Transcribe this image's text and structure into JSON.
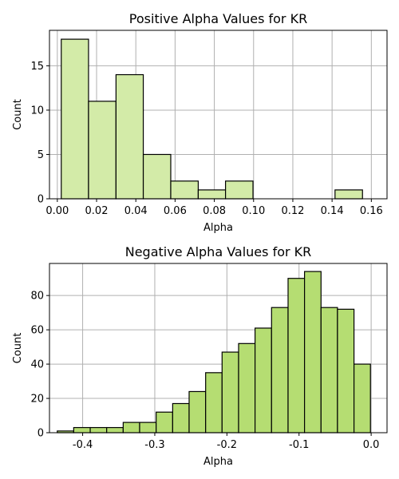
{
  "chart_data": [
    {
      "type": "bar",
      "title": "Positive Alpha Values for KR",
      "xlabel": "Alpha",
      "ylabel": "Count",
      "xlim": [
        -0.004,
        0.168
      ],
      "ylim": [
        0,
        19
      ],
      "xticks": [
        0.0,
        0.02,
        0.04,
        0.06,
        0.08,
        0.1,
        0.12,
        0.14,
        0.16
      ],
      "xtick_labels": [
        "0.00",
        "0.02",
        "0.04",
        "0.06",
        "0.08",
        "0.10",
        "0.12",
        "0.14",
        "0.16"
      ],
      "yticks": [
        0,
        5,
        10,
        15
      ],
      "ytick_labels": [
        "0",
        "5",
        "10",
        "15"
      ],
      "grid": true,
      "bar_color": "#d3eba8",
      "bins": [
        {
          "x0": 0.002,
          "x1": 0.0159,
          "value": 18
        },
        {
          "x0": 0.0159,
          "x1": 0.0299,
          "value": 11
        },
        {
          "x0": 0.0299,
          "x1": 0.0438,
          "value": 14
        },
        {
          "x0": 0.0438,
          "x1": 0.0578,
          "value": 5
        },
        {
          "x0": 0.0578,
          "x1": 0.0718,
          "value": 2
        },
        {
          "x0": 0.0718,
          "x1": 0.0857,
          "value": 1
        },
        {
          "x0": 0.0857,
          "x1": 0.0997,
          "value": 2
        },
        {
          "x0": 0.0997,
          "x1": 0.1136,
          "value": 0
        },
        {
          "x0": 0.1136,
          "x1": 0.1276,
          "value": 0
        },
        {
          "x0": 0.1276,
          "x1": 0.1415,
          "value": 0
        },
        {
          "x0": 0.1415,
          "x1": 0.1555,
          "value": 1
        }
      ]
    },
    {
      "type": "bar",
      "title": "Negative Alpha Values for KR",
      "xlabel": "Alpha",
      "ylabel": "Count",
      "xlim": [
        -0.446,
        0.022
      ],
      "ylim": [
        0,
        98.7
      ],
      "xticks": [
        -0.4,
        -0.3,
        -0.2,
        -0.1,
        0.0
      ],
      "xtick_labels": [
        "-0.4",
        "-0.3",
        "-0.2",
        "-0.1",
        "0.0"
      ],
      "yticks": [
        0,
        20,
        40,
        60,
        80
      ],
      "ytick_labels": [
        "0",
        "20",
        "40",
        "60",
        "80"
      ],
      "grid": true,
      "bar_color": "#b5dd72",
      "bins": [
        {
          "x0": -0.4352,
          "x1": -0.4124,
          "value": 1
        },
        {
          "x0": -0.4124,
          "x1": -0.3895,
          "value": 3
        },
        {
          "x0": -0.3895,
          "x1": -0.3667,
          "value": 3
        },
        {
          "x0": -0.3667,
          "x1": -0.3438,
          "value": 3
        },
        {
          "x0": -0.3438,
          "x1": -0.321,
          "value": 6
        },
        {
          "x0": -0.321,
          "x1": -0.2981,
          "value": 6
        },
        {
          "x0": -0.2981,
          "x1": -0.2752,
          "value": 12
        },
        {
          "x0": -0.2752,
          "x1": -0.2524,
          "value": 17
        },
        {
          "x0": -0.2524,
          "x1": -0.2295,
          "value": 24
        },
        {
          "x0": -0.2295,
          "x1": -0.2067,
          "value": 35
        },
        {
          "x0": -0.2067,
          "x1": -0.1838,
          "value": 47
        },
        {
          "x0": -0.1838,
          "x1": -0.161,
          "value": 52
        },
        {
          "x0": -0.161,
          "x1": -0.1381,
          "value": 61
        },
        {
          "x0": -0.1381,
          "x1": -0.1152,
          "value": 73
        },
        {
          "x0": -0.1152,
          "x1": -0.0924,
          "value": 90
        },
        {
          "x0": -0.0924,
          "x1": -0.0695,
          "value": 94
        },
        {
          "x0": -0.0695,
          "x1": -0.0467,
          "value": 73
        },
        {
          "x0": -0.0467,
          "x1": -0.0238,
          "value": 72
        },
        {
          "x0": -0.0238,
          "x1": -0.001,
          "value": 40
        }
      ]
    }
  ]
}
